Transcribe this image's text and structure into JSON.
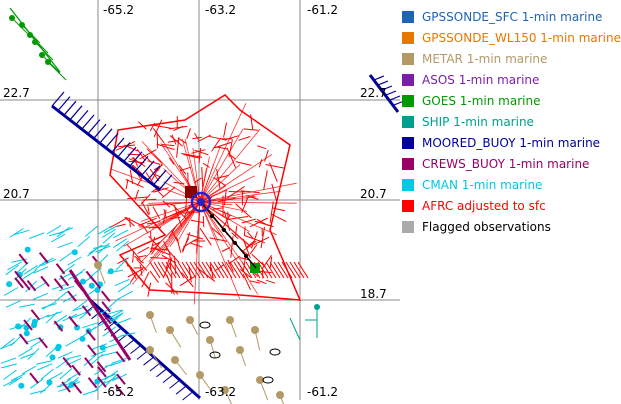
{
  "map": {
    "lon_labels_top": [
      "-65.2",
      "-63.2",
      "-61.2"
    ],
    "lon_labels_bottom": [
      "-65.2",
      "-63.2",
      "-61.2"
    ],
    "lat_labels_left": [
      "22.7",
      "20.7"
    ],
    "lat_labels_right": [
      "22.7",
      "20.7",
      "18.7"
    ],
    "colors": {
      "grid": "#888888",
      "afrc": "#ff0000",
      "moored_buoy": "#000099",
      "cman": "#00c8e6",
      "crews_buoy": "#990066",
      "metar": "#b39966",
      "goes": "#009900",
      "ship": "#00a08c",
      "track": "#000000",
      "center_marker": "#2222cc",
      "dark_red_marker": "#8b0000"
    }
  },
  "legend": {
    "items": [
      {
        "label": "GPSSONDE_SFC 1-min marine",
        "color": "#1f64b4"
      },
      {
        "label": "GPSSONDE_WL150 1-min marine",
        "color": "#e67800"
      },
      {
        "label": "METAR 1-min marine",
        "color": "#b39966"
      },
      {
        "label": "ASOS 1-min marine",
        "color": "#7a1fa8"
      },
      {
        "label": "GOES 1-min marine",
        "color": "#009900"
      },
      {
        "label": "SHIP 1-min marine",
        "color": "#00a08c"
      },
      {
        "label": "MOORED_BUOY 1-min marine",
        "color": "#000099"
      },
      {
        "label": "CREWS_BUOY 1-min marine",
        "color": "#990066"
      },
      {
        "label": "CMAN 1-min marine",
        "color": "#00c8e6"
      },
      {
        "label": "AFRC adjusted to sfc",
        "color": "#ff0000"
      },
      {
        "label": "Flagged observations",
        "color": "#aaaaaa"
      }
    ]
  }
}
